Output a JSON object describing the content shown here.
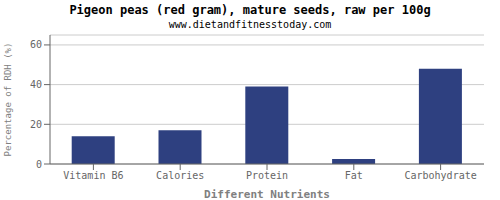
{
  "chart_data": {
    "type": "bar",
    "title": "Pigeon peas (red gram), mature seeds, raw per 100g",
    "subtitle": "www.dietandfitnesstoday.com",
    "categories": [
      "Vitamin B6",
      "Calories",
      "Protein",
      "Fat",
      "Carbohydrate"
    ],
    "values": [
      14,
      17,
      39,
      2.5,
      48
    ],
    "color": "#2e4080",
    "xlabel": "Different Nutrients",
    "ylabel": "Percentage of RDH (%)",
    "ylim": [
      0,
      65
    ],
    "yticks": [
      0,
      20,
      40,
      60
    ],
    "grid": true
  }
}
